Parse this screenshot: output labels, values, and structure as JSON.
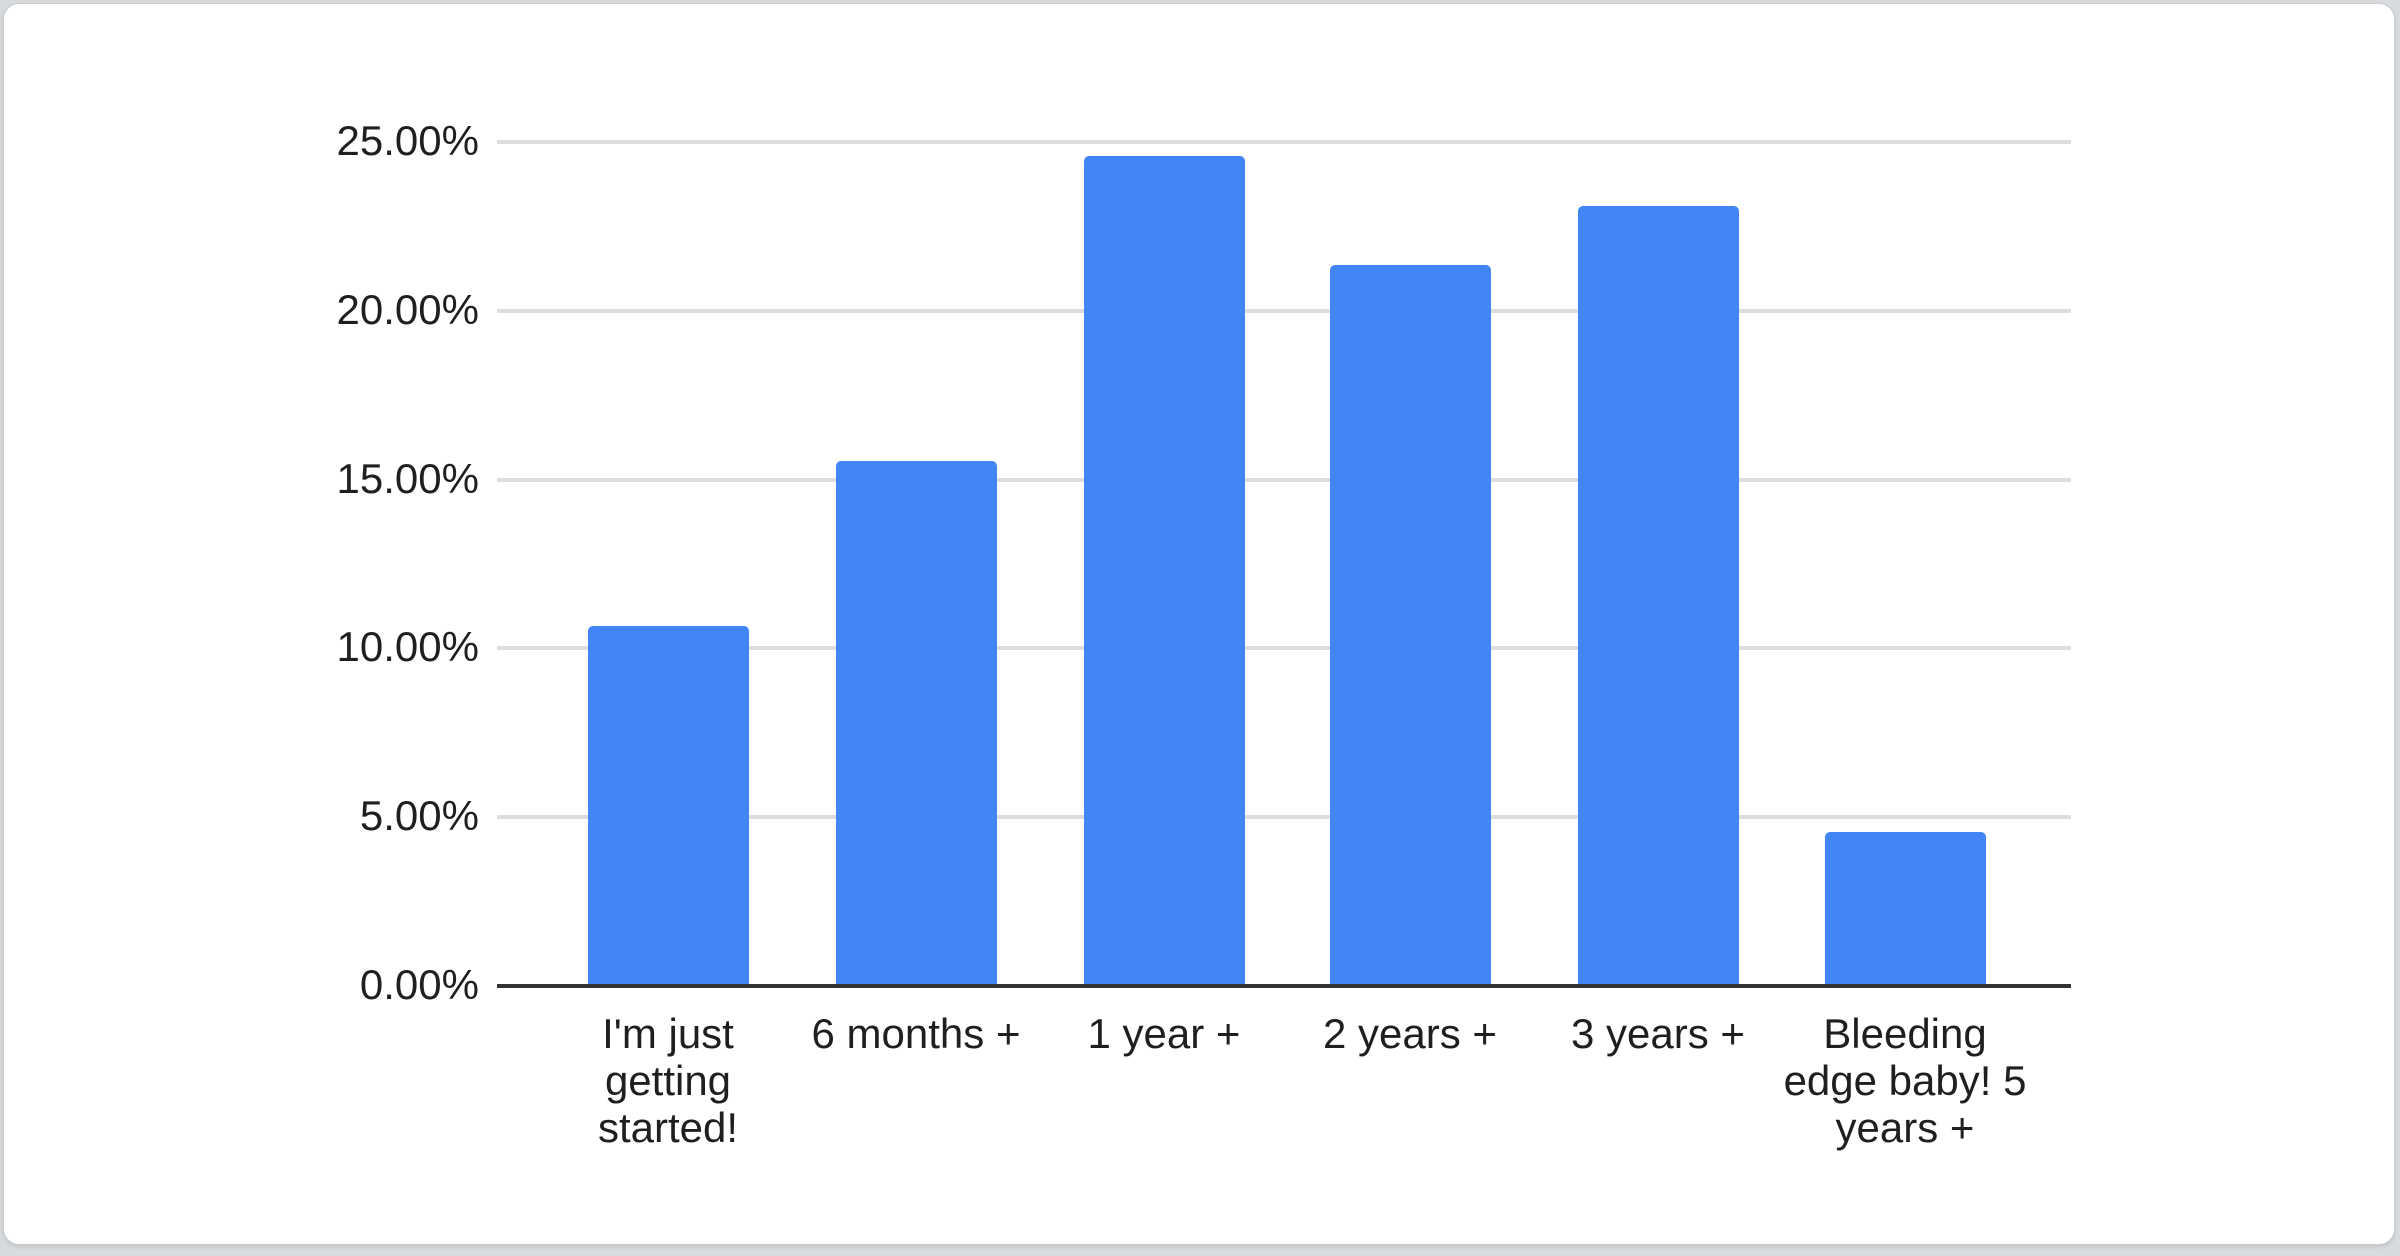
{
  "page": {
    "background_color": "#d8dbde",
    "card_background": "#ffffff",
    "card_border_color": "#c9cdd0"
  },
  "chart_data": {
    "type": "bar",
    "title": "",
    "xlabel": "",
    "ylabel": "",
    "categories": [
      "I'm just getting started!",
      "6 months +",
      "1 year +",
      "2 years +",
      "3 years +",
      "Bleeding edge baby! 5 years +"
    ],
    "values": [
      10.65,
      15.55,
      24.6,
      21.35,
      23.1,
      4.55
    ],
    "value_unit": "%",
    "y_ticks": [
      "25.00%",
      "20.00%",
      "15.00%",
      "10.00%",
      "5.00%",
      "0.00%"
    ],
    "ylim": [
      0,
      25
    ],
    "grid": true,
    "legend": "none",
    "bar_color": "#4285f4",
    "gridline_color": "#dcdee0",
    "axis_line_color": "#333333",
    "label_color": "#1f1f1f"
  }
}
